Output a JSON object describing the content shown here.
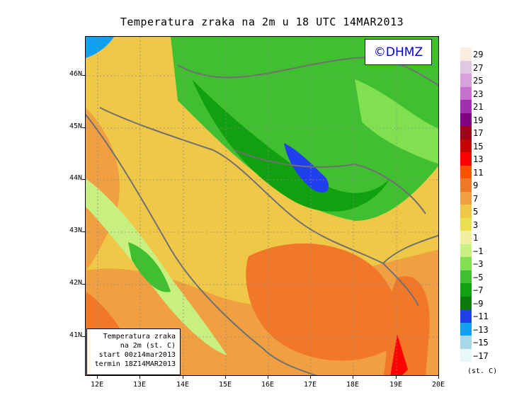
{
  "title": "Temperatura zraka na 2m u 18 UTC 14MAR2013",
  "logo": "©DHMZ",
  "info_box": {
    "line1": "Temperatura zraka",
    "line2": "na 2m (st. C)",
    "line3": "start 00z14mar2013",
    "line4": "termin 18Z14MAR2013"
  },
  "axes": {
    "lat_labels": [
      "46N",
      "45N",
      "44N",
      "43N",
      "42N",
      "41N"
    ],
    "lon_labels": [
      "12E",
      "13E",
      "14E",
      "15E",
      "16E",
      "17E",
      "18E",
      "19E",
      "20E"
    ]
  },
  "legend": {
    "units": "(st. C)",
    "labels": [
      "29",
      "27",
      "25",
      "23",
      "21",
      "19",
      "17",
      "15",
      "13",
      "11",
      "9",
      "7",
      "5",
      "3",
      "1",
      "−1",
      "−3",
      "−5",
      "−7",
      "−9",
      "−11",
      "−13",
      "−15",
      "−17"
    ],
    "colors": [
      "#fbeee0",
      "#e0c8e4",
      "#d8a0dc",
      "#c870d0",
      "#a030b0",
      "#800080",
      "#a00018",
      "#c80000",
      "#ff0000",
      "#ff5000",
      "#f07828",
      "#f0a040",
      "#f0c848",
      "#e8e050",
      "#f0f0a0",
      "#c8f080",
      "#80e050",
      "#40c030",
      "#10a010",
      "#0a7a0a",
      "#2040f0",
      "#10a0f0",
      "#a8d8e8",
      "#e8f8f8"
    ]
  }
}
